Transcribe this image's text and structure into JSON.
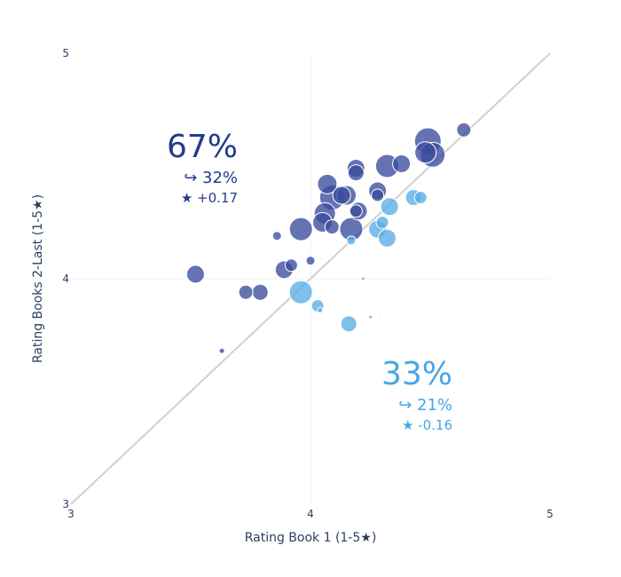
{
  "chart_data": {
    "type": "scatter",
    "title": "",
    "xlabel": "Rating Book 1 (1-5★)",
    "ylabel": "Rating Books 2-Last (1-5★)",
    "xlim": [
      3,
      5
    ],
    "ylim": [
      3,
      5
    ],
    "x_ticks": [
      "3",
      "4",
      "5"
    ],
    "y_ticks": [
      "3",
      "4",
      "5"
    ],
    "grid": true,
    "reference_line": "y = x",
    "marker_size_encodes": "relative size (unlabeled)",
    "series": [
      {
        "group": "above",
        "color": "#3a4b9c",
        "points": [
          {
            "x": 3.52,
            "y": 4.02,
            "size": 10
          },
          {
            "x": 3.63,
            "y": 3.68,
            "size": 3
          },
          {
            "x": 3.73,
            "y": 3.94,
            "size": 8
          },
          {
            "x": 3.79,
            "y": 3.94,
            "size": 9
          },
          {
            "x": 3.86,
            "y": 4.19,
            "size": 5
          },
          {
            "x": 3.89,
            "y": 4.04,
            "size": 10
          },
          {
            "x": 3.92,
            "y": 4.06,
            "size": 7
          },
          {
            "x": 3.96,
            "y": 4.22,
            "size": 13
          },
          {
            "x": 4.0,
            "y": 4.08,
            "size": 5
          },
          {
            "x": 4.05,
            "y": 4.25,
            "size": 11
          },
          {
            "x": 4.06,
            "y": 4.29,
            "size": 12
          },
          {
            "x": 4.07,
            "y": 4.42,
            "size": 11
          },
          {
            "x": 4.09,
            "y": 4.36,
            "size": 14
          },
          {
            "x": 4.09,
            "y": 4.23,
            "size": 8
          },
          {
            "x": 4.13,
            "y": 4.37,
            "size": 10
          },
          {
            "x": 4.15,
            "y": 4.37,
            "size": 11
          },
          {
            "x": 4.17,
            "y": 4.22,
            "size": 13
          },
          {
            "x": 4.19,
            "y": 4.49,
            "size": 10
          },
          {
            "x": 4.19,
            "y": 4.47,
            "size": 9
          },
          {
            "x": 4.2,
            "y": 4.3,
            "size": 10
          },
          {
            "x": 4.19,
            "y": 4.3,
            "size": 7
          },
          {
            "x": 4.28,
            "y": 4.39,
            "size": 10
          },
          {
            "x": 4.28,
            "y": 4.37,
            "size": 7
          },
          {
            "x": 4.32,
            "y": 4.5,
            "size": 13
          },
          {
            "x": 4.38,
            "y": 4.51,
            "size": 10
          },
          {
            "x": 4.49,
            "y": 4.61,
            "size": 15
          },
          {
            "x": 4.48,
            "y": 4.56,
            "size": 12
          },
          {
            "x": 4.51,
            "y": 4.55,
            "size": 14
          },
          {
            "x": 4.64,
            "y": 4.66,
            "size": 8
          }
        ]
      },
      {
        "group": "below",
        "color": "#5aade6",
        "points": [
          {
            "x": 3.96,
            "y": 3.94,
            "size": 13
          },
          {
            "x": 4.03,
            "y": 3.88,
            "size": 7
          },
          {
            "x": 4.04,
            "y": 3.86,
            "size": 3
          },
          {
            "x": 4.16,
            "y": 3.8,
            "size": 9
          },
          {
            "x": 4.17,
            "y": 4.17,
            "size": 5
          },
          {
            "x": 4.22,
            "y": 4.0,
            "size": 2
          },
          {
            "x": 4.25,
            "y": 3.83,
            "size": 2
          },
          {
            "x": 4.28,
            "y": 4.22,
            "size": 10
          },
          {
            "x": 4.29,
            "y": 3.84,
            "size": 1
          },
          {
            "x": 4.3,
            "y": 4.25,
            "size": 7
          },
          {
            "x": 4.32,
            "y": 4.18,
            "size": 10
          },
          {
            "x": 4.33,
            "y": 4.32,
            "size": 10
          },
          {
            "x": 4.43,
            "y": 4.36,
            "size": 9
          },
          {
            "x": 4.46,
            "y": 4.36,
            "size": 7
          }
        ]
      }
    ],
    "annotations": [
      {
        "group": "above",
        "percent": "67%",
        "sub": "↪ 32%",
        "star": "★ +0.17",
        "color": "#233a8c"
      },
      {
        "group": "below",
        "percent": "33%",
        "sub": "↪ 21%",
        "star": "★ -0.16",
        "color": "#46a6e4"
      }
    ]
  }
}
